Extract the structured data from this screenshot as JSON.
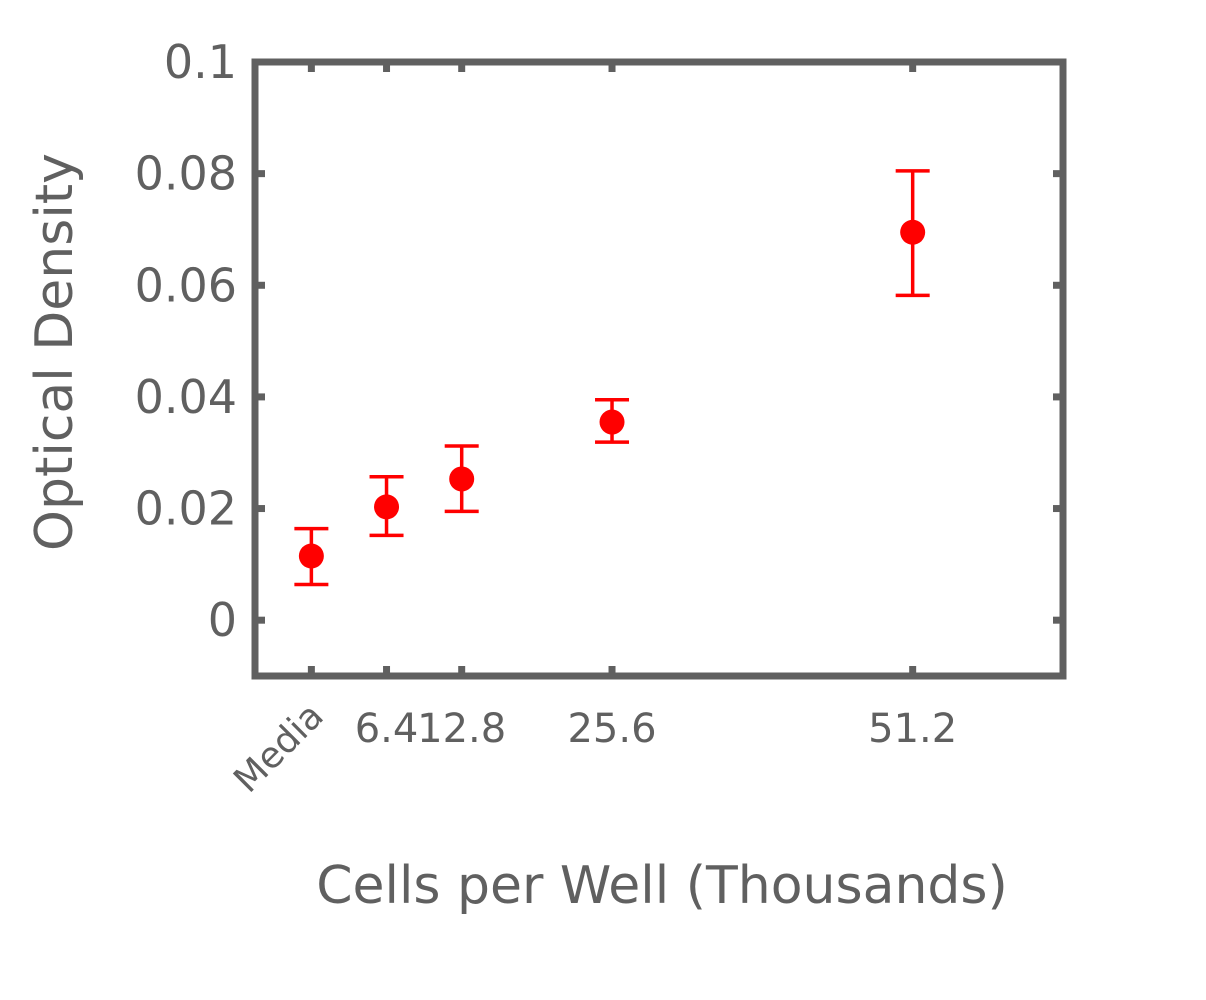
{
  "chart_data": {
    "type": "scatter",
    "title": "",
    "xlabel": "Cells per Well (Thousands)",
    "ylabel": "Optical Density",
    "ylim": [
      -0.01,
      0.1
    ],
    "yticks": [
      0,
      0.02,
      0.04,
      0.06,
      0.08,
      0.1
    ],
    "ytick_labels": [
      "0",
      "0.02",
      "0.04",
      "0.06",
      "0.08",
      "0.1"
    ],
    "xlim": [
      -4.8,
      64
    ],
    "xticks": [
      0,
      6.4,
      12.8,
      25.6,
      51.2
    ],
    "xtick_labels": [
      "Media",
      "6.4",
      "12.8",
      "25.6",
      "51.2"
    ],
    "grid": false,
    "legend": "none",
    "colors": {
      "marker": "#ff0000",
      "axis": "#606060"
    },
    "series": [
      {
        "x": [
          0,
          6.4,
          12.8,
          25.6,
          51.2
        ],
        "y": [
          0.0115,
          0.0203,
          0.0253,
          0.0355,
          0.0695
        ],
        "error_low": [
          0.0064,
          0.0152,
          0.0195,
          0.0319,
          0.0582
        ],
        "error_high": [
          0.0164,
          0.0257,
          0.0312,
          0.0395,
          0.0805
        ]
      }
    ]
  }
}
